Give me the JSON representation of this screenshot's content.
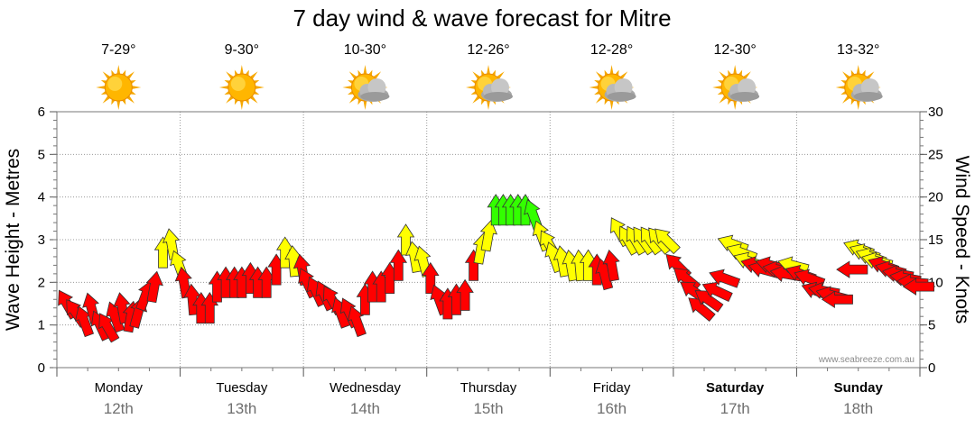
{
  "chart_data": {
    "type": "scatter",
    "title": "7 day wind & wave forecast for Mitre",
    "ylabel_left": "Wave Height - Metres",
    "ylabel_right": "Wind Speed - Knots",
    "ylim_left": [
      0,
      6
    ],
    "ylim_right": [
      0,
      30
    ],
    "yticks_left": [
      "0",
      "1",
      "2",
      "3",
      "4",
      "5",
      "6"
    ],
    "yticks_right": [
      "0",
      "5",
      "10",
      "15",
      "20",
      "25",
      "30"
    ],
    "grid": true,
    "credit": "www.seabreeze.com.au",
    "days": [
      {
        "name": "Monday",
        "date": "12th",
        "temp": "7-29°",
        "icon": "sun-icon",
        "bold": false
      },
      {
        "name": "Tuesday",
        "date": "13th",
        "temp": "9-30°",
        "icon": "sun-icon",
        "bold": false
      },
      {
        "name": "Wednesday",
        "date": "14th",
        "temp": "10-30°",
        "icon": "partly-cloudy-icon",
        "bold": false
      },
      {
        "name": "Thursday",
        "date": "15th",
        "temp": "12-26°",
        "icon": "partly-cloudy-icon",
        "bold": false
      },
      {
        "name": "Friday",
        "date": "16th",
        "temp": "12-28°",
        "icon": "partly-cloudy-icon",
        "bold": false
      },
      {
        "name": "Saturday",
        "date": "17th",
        "temp": "12-30°",
        "icon": "partly-cloudy-icon",
        "bold": true
      },
      {
        "name": "Sunday",
        "date": "18th",
        "temp": "13-32°",
        "icon": "partly-cloudy-icon",
        "bold": true
      }
    ],
    "colors": {
      "red": "#ff0000",
      "yellow": "#ffff00",
      "green": "#33ff00",
      "outline": "#333333",
      "grid": "#9a9a9a"
    },
    "series": [
      {
        "day": 0,
        "arrows": [
          {
            "t": 0.08,
            "knots": 7.5,
            "dir": -30,
            "c": "red"
          },
          {
            "t": 0.15,
            "knots": 6.5,
            "dir": -35,
            "c": "red"
          },
          {
            "t": 0.22,
            "knots": 5.5,
            "dir": -20,
            "c": "red"
          },
          {
            "t": 0.28,
            "knots": 7,
            "dir": -15,
            "c": "red"
          },
          {
            "t": 0.35,
            "knots": 5,
            "dir": -25,
            "c": "red"
          },
          {
            "t": 0.41,
            "knots": 4.8,
            "dir": -30,
            "c": "red"
          },
          {
            "t": 0.47,
            "knots": 6,
            "dir": -20,
            "c": "red"
          },
          {
            "t": 0.53,
            "knots": 7,
            "dir": -10,
            "c": "red"
          },
          {
            "t": 0.6,
            "knots": 6,
            "dir": 10,
            "c": "red"
          },
          {
            "t": 0.66,
            "knots": 6.5,
            "dir": 15,
            "c": "red"
          },
          {
            "t": 0.72,
            "knots": 8.5,
            "dir": 20,
            "c": "red"
          },
          {
            "t": 0.79,
            "knots": 9.5,
            "dir": 10,
            "c": "red"
          },
          {
            "t": 0.86,
            "knots": 13.5,
            "dir": 0,
            "c": "yellow"
          },
          {
            "t": 0.93,
            "knots": 14.5,
            "dir": -10,
            "c": "yellow"
          },
          {
            "t": 0.99,
            "knots": 12,
            "dir": -20,
            "c": "yellow"
          }
        ]
      },
      {
        "day": 1,
        "arrows": [
          {
            "t": 0.03,
            "knots": 10,
            "dir": -10,
            "c": "red"
          },
          {
            "t": 0.1,
            "knots": 8,
            "dir": -5,
            "c": "red"
          },
          {
            "t": 0.17,
            "knots": 7,
            "dir": 0,
            "c": "red"
          },
          {
            "t": 0.24,
            "knots": 7,
            "dir": 0,
            "c": "red"
          },
          {
            "t": 0.3,
            "knots": 9.5,
            "dir": 0,
            "c": "red"
          },
          {
            "t": 0.37,
            "knots": 10,
            "dir": 0,
            "c": "red"
          },
          {
            "t": 0.44,
            "knots": 10,
            "dir": 0,
            "c": "red"
          },
          {
            "t": 0.5,
            "knots": 10,
            "dir": 0,
            "c": "red"
          },
          {
            "t": 0.57,
            "knots": 10.5,
            "dir": 0,
            "c": "red"
          },
          {
            "t": 0.63,
            "knots": 10,
            "dir": 0,
            "c": "red"
          },
          {
            "t": 0.7,
            "knots": 10,
            "dir": 0,
            "c": "red"
          },
          {
            "t": 0.78,
            "knots": 11.5,
            "dir": 0,
            "c": "red"
          },
          {
            "t": 0.85,
            "knots": 13.5,
            "dir": 0,
            "c": "yellow"
          },
          {
            "t": 0.92,
            "knots": 12.5,
            "dir": -5,
            "c": "yellow"
          },
          {
            "t": 0.99,
            "knots": 11.5,
            "dir": -10,
            "c": "red"
          }
        ]
      },
      {
        "day": 2,
        "arrows": [
          {
            "t": 0.03,
            "knots": 10,
            "dir": -25,
            "c": "red"
          },
          {
            "t": 0.1,
            "knots": 9,
            "dir": -25,
            "c": "red"
          },
          {
            "t": 0.17,
            "knots": 8.5,
            "dir": -25,
            "c": "red"
          },
          {
            "t": 0.23,
            "knots": 8,
            "dir": -30,
            "c": "red"
          },
          {
            "t": 0.3,
            "knots": 6.5,
            "dir": -20,
            "c": "red"
          },
          {
            "t": 0.37,
            "knots": 6.5,
            "dir": -25,
            "c": "red"
          },
          {
            "t": 0.43,
            "knots": 5.5,
            "dir": -20,
            "c": "red"
          },
          {
            "t": 0.5,
            "knots": 8,
            "dir": 0,
            "c": "red"
          },
          {
            "t": 0.56,
            "knots": 9.5,
            "dir": 0,
            "c": "red"
          },
          {
            "t": 0.63,
            "knots": 9.5,
            "dir": 0,
            "c": "red"
          },
          {
            "t": 0.7,
            "knots": 10.5,
            "dir": 0,
            "c": "red"
          },
          {
            "t": 0.77,
            "knots": 12,
            "dir": 0,
            "c": "red"
          },
          {
            "t": 0.83,
            "knots": 15,
            "dir": 0,
            "c": "yellow"
          },
          {
            "t": 0.9,
            "knots": 13,
            "dir": -10,
            "c": "yellow"
          },
          {
            "t": 0.97,
            "knots": 12.5,
            "dir": -15,
            "c": "yellow"
          }
        ]
      },
      {
        "day": 3,
        "arrows": [
          {
            "t": 0.03,
            "knots": 10.5,
            "dir": 0,
            "c": "red"
          },
          {
            "t": 0.1,
            "knots": 8,
            "dir": -20,
            "c": "red"
          },
          {
            "t": 0.17,
            "knots": 7.5,
            "dir": 0,
            "c": "red"
          },
          {
            "t": 0.24,
            "knots": 8,
            "dir": 0,
            "c": "red"
          },
          {
            "t": 0.31,
            "knots": 8.5,
            "dir": 0,
            "c": "red"
          },
          {
            "t": 0.38,
            "knots": 12,
            "dir": 0,
            "c": "red"
          },
          {
            "t": 0.44,
            "knots": 14,
            "dir": 10,
            "c": "yellow"
          },
          {
            "t": 0.5,
            "knots": 15.5,
            "dir": 10,
            "c": "yellow"
          },
          {
            "t": 0.56,
            "knots": 18.5,
            "dir": 0,
            "c": "green"
          },
          {
            "t": 0.62,
            "knots": 18.5,
            "dir": 0,
            "c": "green"
          },
          {
            "t": 0.68,
            "knots": 18.5,
            "dir": 0,
            "c": "green"
          },
          {
            "t": 0.74,
            "knots": 18.5,
            "dir": 0,
            "c": "green"
          },
          {
            "t": 0.8,
            "knots": 18.5,
            "dir": 0,
            "c": "green"
          },
          {
            "t": 0.86,
            "knots": 18,
            "dir": -20,
            "c": "green"
          },
          {
            "t": 0.93,
            "knots": 15.5,
            "dir": -20,
            "c": "yellow"
          },
          {
            "t": 0.99,
            "knots": 14.5,
            "dir": -30,
            "c": "yellow"
          }
        ]
      },
      {
        "day": 4,
        "arrows": [
          {
            "t": 0.03,
            "knots": 13,
            "dir": -20,
            "c": "yellow"
          },
          {
            "t": 0.1,
            "knots": 12.5,
            "dir": -10,
            "c": "yellow"
          },
          {
            "t": 0.17,
            "knots": 12,
            "dir": -10,
            "c": "yellow"
          },
          {
            "t": 0.24,
            "knots": 12,
            "dir": -5,
            "c": "yellow"
          },
          {
            "t": 0.31,
            "knots": 12,
            "dir": 0,
            "c": "yellow"
          },
          {
            "t": 0.38,
            "knots": 11.5,
            "dir": 0,
            "c": "red"
          },
          {
            "t": 0.44,
            "knots": 11,
            "dir": -15,
            "c": "red"
          },
          {
            "t": 0.5,
            "knots": 12,
            "dir": -10,
            "c": "red"
          },
          {
            "t": 0.56,
            "knots": 16,
            "dir": -30,
            "c": "yellow"
          },
          {
            "t": 0.63,
            "knots": 15,
            "dir": -30,
            "c": "yellow"
          },
          {
            "t": 0.69,
            "knots": 15,
            "dir": -30,
            "c": "yellow"
          },
          {
            "t": 0.75,
            "knots": 15,
            "dir": -35,
            "c": "yellow"
          },
          {
            "t": 0.81,
            "knots": 15,
            "dir": -35,
            "c": "yellow"
          },
          {
            "t": 0.88,
            "knots": 15,
            "dir": -40,
            "c": "yellow"
          },
          {
            "t": 0.94,
            "knots": 15,
            "dir": -45,
            "c": "yellow"
          }
        ]
      },
      {
        "day": 5,
        "arrows": [
          {
            "t": 0.03,
            "knots": 12,
            "dir": -45,
            "c": "red"
          },
          {
            "t": 0.1,
            "knots": 10.5,
            "dir": -50,
            "c": "red"
          },
          {
            "t": 0.16,
            "knots": 9,
            "dir": -55,
            "c": "red"
          },
          {
            "t": 0.22,
            "knots": 7,
            "dir": -50,
            "c": "red"
          },
          {
            "t": 0.28,
            "knots": 8,
            "dir": -55,
            "c": "red"
          },
          {
            "t": 0.35,
            "knots": 9,
            "dir": -65,
            "c": "red"
          },
          {
            "t": 0.41,
            "knots": 10.5,
            "dir": -70,
            "c": "red"
          },
          {
            "t": 0.48,
            "knots": 14.5,
            "dir": -70,
            "c": "yellow"
          },
          {
            "t": 0.55,
            "knots": 13.5,
            "dir": -70,
            "c": "yellow"
          },
          {
            "t": 0.61,
            "knots": 12.5,
            "dir": -70,
            "c": "yellow"
          },
          {
            "t": 0.67,
            "knots": 12,
            "dir": -75,
            "c": "red"
          },
          {
            "t": 0.73,
            "knots": 11.5,
            "dir": -75,
            "c": "red"
          },
          {
            "t": 0.79,
            "knots": 12,
            "dir": -75,
            "c": "red"
          },
          {
            "t": 0.85,
            "knots": 11.5,
            "dir": -80,
            "c": "red"
          },
          {
            "t": 0.91,
            "knots": 11,
            "dir": -80,
            "c": "red"
          },
          {
            "t": 0.97,
            "knots": 12,
            "dir": -75,
            "c": "yellow"
          }
        ]
      },
      {
        "day": 6,
        "arrows": [
          {
            "t": 0.03,
            "knots": 11,
            "dir": -70,
            "c": "red"
          },
          {
            "t": 0.1,
            "knots": 10.5,
            "dir": -70,
            "c": "red"
          },
          {
            "t": 0.16,
            "knots": 9,
            "dir": -70,
            "c": "red"
          },
          {
            "t": 0.22,
            "knots": 9,
            "dir": -80,
            "c": "red"
          },
          {
            "t": 0.28,
            "knots": 8.5,
            "dir": -75,
            "c": "red"
          },
          {
            "t": 0.33,
            "knots": 8,
            "dir": -90,
            "c": "red"
          },
          {
            "t": 0.45,
            "knots": 11.5,
            "dir": -90,
            "c": "red"
          },
          {
            "t": 0.5,
            "knots": 14,
            "dir": -70,
            "c": "yellow"
          },
          {
            "t": 0.55,
            "knots": 13.5,
            "dir": -70,
            "c": "yellow"
          },
          {
            "t": 0.6,
            "knots": 13,
            "dir": -70,
            "c": "yellow"
          },
          {
            "t": 0.65,
            "knots": 12.5,
            "dir": -75,
            "c": "yellow"
          },
          {
            "t": 0.7,
            "knots": 12,
            "dir": -70,
            "c": "red"
          },
          {
            "t": 0.76,
            "knots": 11.5,
            "dir": -75,
            "c": "red"
          },
          {
            "t": 0.82,
            "knots": 11,
            "dir": -80,
            "c": "red"
          },
          {
            "t": 0.88,
            "knots": 10.5,
            "dir": -80,
            "c": "red"
          },
          {
            "t": 0.94,
            "knots": 10,
            "dir": -85,
            "c": "red"
          },
          {
            "t": 0.99,
            "knots": 9.5,
            "dir": -90,
            "c": "red"
          }
        ]
      }
    ]
  }
}
